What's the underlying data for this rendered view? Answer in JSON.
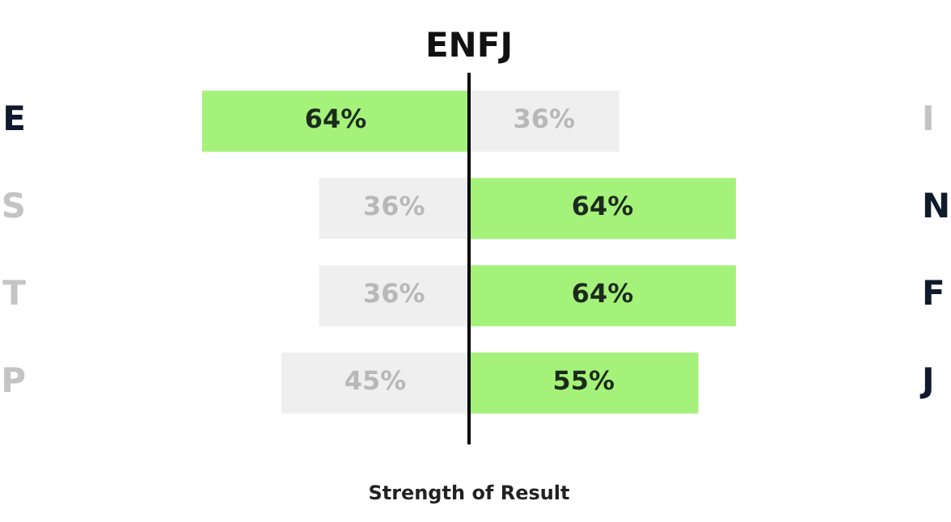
{
  "chart_data": [
    {
      "type": "bar",
      "orientation": "horizontal",
      "title": "ENFJ",
      "xlabel": "Strength of Result",
      "categories": [
        "E",
        "S",
        "T",
        "P"
      ],
      "values": [
        64,
        36,
        36,
        45
      ],
      "colors": [
        "#a5f27a",
        "#efefef",
        "#efefef",
        "#efefef"
      ],
      "value_labels": [
        "64%",
        "36%",
        "36%",
        "45%"
      ],
      "legend": false
    },
    {
      "type": "bar",
      "orientation": "horizontal",
      "categories": [
        "I",
        "N",
        "F",
        "J"
      ],
      "values": [
        36,
        64,
        64,
        55
      ],
      "colors": [
        "#efefef",
        "#a5f27a",
        "#a5f27a",
        "#a5f27a"
      ],
      "value_labels": [
        "36%",
        "64%",
        "64%",
        "55%"
      ],
      "legend": false
    }
  ]
}
